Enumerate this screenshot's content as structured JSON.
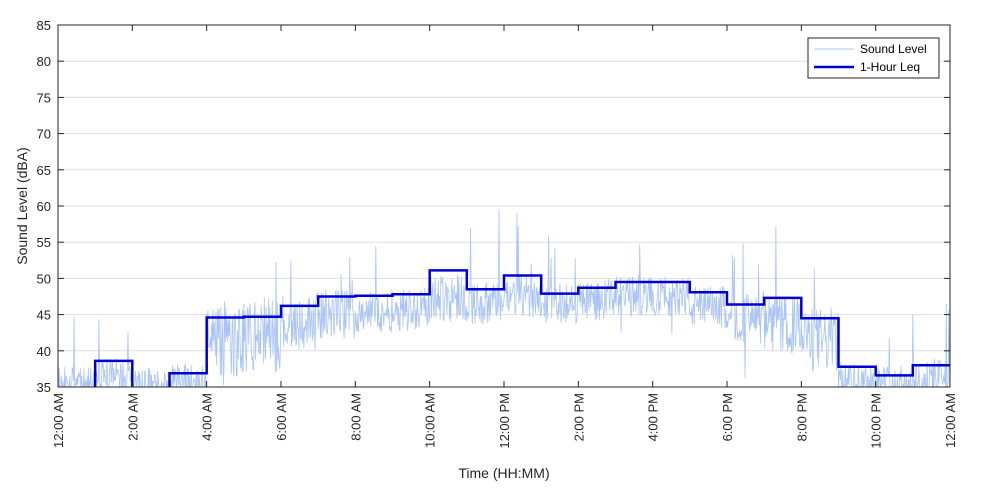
{
  "chart_data": {
    "type": "line",
    "xlabel": "Time (HH:MM)",
    "ylabel": "Sound Level (dBA)",
    "ylim": [
      35,
      85
    ],
    "y_ticks": [
      35,
      40,
      45,
      50,
      55,
      60,
      65,
      70,
      75,
      80,
      85
    ],
    "xlim_hours": [
      0,
      24
    ],
    "x_ticks": [
      {
        "hour": 0,
        "label": "12:00 AM"
      },
      {
        "hour": 2,
        "label": "2:00 AM"
      },
      {
        "hour": 4,
        "label": "4:00 AM"
      },
      {
        "hour": 6,
        "label": "6:00 AM"
      },
      {
        "hour": 8,
        "label": "8:00 AM"
      },
      {
        "hour": 10,
        "label": "10:00 AM"
      },
      {
        "hour": 12,
        "label": "12:00 PM"
      },
      {
        "hour": 14,
        "label": "2:00 PM"
      },
      {
        "hour": 16,
        "label": "4:00 PM"
      },
      {
        "hour": 18,
        "label": "6:00 PM"
      },
      {
        "hour": 20,
        "label": "8:00 PM"
      },
      {
        "hour": 22,
        "label": "10:00 PM"
      },
      {
        "hour": 24,
        "label": "12:00 AM"
      }
    ],
    "grid": "horizontal",
    "legend_position": "top-right",
    "series": [
      {
        "name": "Sound Level",
        "color": "#a9c4f5",
        "style": "thin-line",
        "hour_profile": [
          {
            "hour": 0,
            "mean": 35.5,
            "spread": 2.5,
            "spike": 10
          },
          {
            "hour": 1,
            "mean": 36.5,
            "spread": 2.5,
            "spike": 12
          },
          {
            "hour": 2,
            "mean": 35.5,
            "spread": 2.0,
            "spike": 5
          },
          {
            "hour": 3,
            "mean": 35.8,
            "spread": 2.5,
            "spike": 8
          },
          {
            "hour": 4,
            "mean": 41.0,
            "spread": 5.0,
            "spike": 12
          },
          {
            "hour": 5,
            "mean": 42.0,
            "spread": 5.5,
            "spike": 12
          },
          {
            "hour": 6,
            "mean": 44.0,
            "spread": 4.0,
            "spike": 8
          },
          {
            "hour": 7,
            "mean": 45.0,
            "spread": 3.5,
            "spike": 10
          },
          {
            "hour": 8,
            "mean": 45.5,
            "spread": 3.0,
            "spike": 10
          },
          {
            "hour": 9,
            "mean": 45.8,
            "spread": 3.0,
            "spike": 8
          },
          {
            "hour": 10,
            "mean": 47.5,
            "spread": 3.5,
            "spike": 15
          },
          {
            "hour": 11,
            "mean": 46.5,
            "spread": 3.0,
            "spike": 14
          },
          {
            "hour": 12,
            "mean": 47.5,
            "spread": 3.0,
            "spike": 13
          },
          {
            "hour": 13,
            "mean": 46.5,
            "spread": 2.8,
            "spike": 9
          },
          {
            "hour": 14,
            "mean": 47.0,
            "spread": 2.8,
            "spike": 9
          },
          {
            "hour": 15,
            "mean": 47.5,
            "spread": 2.8,
            "spike": 8
          },
          {
            "hour": 16,
            "mean": 47.5,
            "spread": 2.8,
            "spike": 7
          },
          {
            "hour": 17,
            "mean": 46.0,
            "spread": 3.0,
            "spike": 8
          },
          {
            "hour": 18,
            "mean": 44.5,
            "spread": 3.5,
            "spike": 9
          },
          {
            "hour": 19,
            "mean": 43.5,
            "spread": 4.0,
            "spike": 13
          },
          {
            "hour": 20,
            "mean": 41.5,
            "spread": 4.5,
            "spike": 9
          },
          {
            "hour": 21,
            "mean": 36.0,
            "spread": 2.5,
            "spike": 6
          },
          {
            "hour": 22,
            "mean": 35.6,
            "spread": 2.5,
            "spike": 11
          },
          {
            "hour": 23,
            "mean": 36.0,
            "spread": 3.0,
            "spike": 15
          }
        ]
      },
      {
        "name": "1-Hour Leq",
        "color": "#0000d6",
        "style": "step",
        "values": [
          {
            "hour": 0,
            "value": 34.5
          },
          {
            "hour": 1,
            "value": 38.6
          },
          {
            "hour": 2,
            "value": 34.5
          },
          {
            "hour": 3,
            "value": 36.9
          },
          {
            "hour": 4,
            "value": 44.6
          },
          {
            "hour": 5,
            "value": 44.7
          },
          {
            "hour": 6,
            "value": 46.2
          },
          {
            "hour": 7,
            "value": 47.5
          },
          {
            "hour": 8,
            "value": 47.6
          },
          {
            "hour": 9,
            "value": 47.8
          },
          {
            "hour": 10,
            "value": 51.1
          },
          {
            "hour": 11,
            "value": 48.5
          },
          {
            "hour": 12,
            "value": 50.4
          },
          {
            "hour": 13,
            "value": 47.9
          },
          {
            "hour": 14,
            "value": 48.7
          },
          {
            "hour": 15,
            "value": 49.5
          },
          {
            "hour": 16,
            "value": 49.5
          },
          {
            "hour": 17,
            "value": 48.1
          },
          {
            "hour": 18,
            "value": 46.4
          },
          {
            "hour": 19,
            "value": 47.3
          },
          {
            "hour": 20,
            "value": 44.5
          },
          {
            "hour": 21,
            "value": 37.8
          },
          {
            "hour": 22,
            "value": 36.6
          },
          {
            "hour": 23,
            "value": 38.0
          }
        ]
      }
    ]
  }
}
